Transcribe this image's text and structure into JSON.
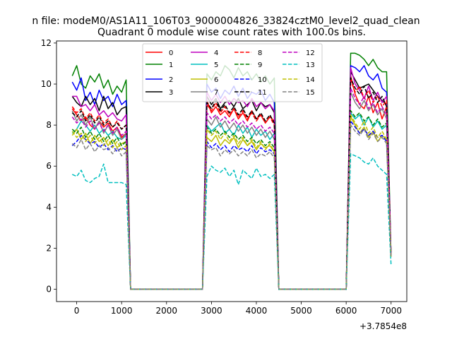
{
  "figure": {
    "suptitle": "n file: modeM0/AS1A11_106T03_9000004826_33824cztM0_level2_quad_clean",
    "offset_label": "+3.7854e8"
  },
  "chart_data": {
    "type": "line",
    "title": "Quadrant 0 module wise count rates with 100.0s bins.",
    "xlabel": "",
    "ylabel": "",
    "xlim": [
      -450,
      7350
    ],
    "ylim": [
      -0.6,
      12.1
    ],
    "x_ticks": [
      0,
      1000,
      2000,
      3000,
      4000,
      5000,
      6000,
      7000
    ],
    "y_ticks": [
      0,
      2,
      4,
      6,
      8,
      10,
      12
    ],
    "x_offset": 378540000,
    "grid": false,
    "legend_placement": "top-center",
    "legend_columns": 4,
    "segments": [
      {
        "x_start": -100,
        "x_end": 1100
      },
      {
        "x_start": 2900,
        "x_end": 4400
      },
      {
        "x_start": 6100,
        "x_end": 6900
      }
    ],
    "zero_range": [
      1200,
      2800,
      4500,
      6000
    ],
    "series": [
      {
        "name": "0",
        "color": "#ff0000",
        "style": "solid",
        "segments": [
          [
            8.8,
            8.5,
            8.2,
            8.4,
            8.0,
            7.8,
            8.2,
            7.9,
            8.1,
            7.7,
            7.9,
            7.4,
            7.6
          ],
          [
            9.2,
            8.6,
            8.9,
            8.5,
            8.7,
            8.4,
            8.8,
            8.3,
            8.6,
            8.2,
            8.7,
            8.3,
            8.5,
            8.1,
            8.4,
            8.2
          ],
          [
            10.4,
            9.5,
            9.0,
            8.8,
            9.4,
            8.6,
            9.1,
            8.3,
            8.9
          ]
        ]
      },
      {
        "name": "1",
        "color": "#008000",
        "style": "solid",
        "segments": [
          [
            10.4,
            10.9,
            10.0,
            9.8,
            10.4,
            10.1,
            10.5,
            9.8,
            10.2,
            9.5,
            9.9,
            9.6,
            10.2
          ],
          [
            10.5,
            10.2,
            10.6,
            10.4,
            10.9,
            10.7,
            10.3,
            10.8,
            10.4,
            10.6,
            10.2,
            10.5,
            10.1,
            10.4,
            10.0,
            10.3
          ],
          [
            11.5,
            11.5,
            11.4,
            11.2,
            10.9,
            11.2,
            10.8,
            10.6,
            10.6
          ]
        ]
      },
      {
        "name": "2",
        "color": "#0000ff",
        "style": "solid",
        "segments": [
          [
            10.1,
            9.7,
            10.3,
            9.2,
            9.6,
            9.0,
            9.7,
            9.2,
            9.4,
            8.9,
            9.5,
            9.0,
            9.2
          ],
          [
            10.0,
            9.6,
            9.8,
            9.3,
            9.7,
            9.5,
            9.9,
            9.4,
            9.8,
            9.3,
            9.6,
            9.5,
            9.7,
            9.2,
            9.5,
            9.1
          ],
          [
            10.9,
            10.8,
            10.6,
            10.9,
            10.4,
            10.2,
            10.5,
            9.8,
            9.6
          ]
        ]
      },
      {
        "name": "3",
        "color": "#000000",
        "style": "solid",
        "segments": [
          [
            9.4,
            9.1,
            8.9,
            9.4,
            9.0,
            9.3,
            8.7,
            9.4,
            8.8,
            9.1,
            8.5,
            8.8,
            8.9
          ],
          [
            9.4,
            9.0,
            9.3,
            8.8,
            9.1,
            9.2,
            8.9,
            9.3,
            8.8,
            9.0,
            9.2,
            8.7,
            9.1,
            8.9,
            9.0,
            8.6
          ],
          [
            10.6,
            10.2,
            9.8,
            9.9,
            10.0,
            9.7,
            9.4,
            9.2,
            9.0
          ]
        ]
      },
      {
        "name": "4",
        "color": "#bf00bf",
        "style": "solid",
        "segments": [
          [
            9.4,
            9.4,
            8.9,
            9.0,
            8.7,
            9.0,
            8.5,
            8.7,
            8.4,
            8.6,
            8.3,
            8.2,
            8.5
          ],
          [
            9.6,
            9.2,
            9.5,
            9.1,
            9.4,
            9.0,
            9.3,
            9.1,
            9.2,
            8.9,
            9.3,
            8.9,
            9.1,
            8.8,
            9.0,
            8.7
          ],
          [
            10.8,
            10.0,
            9.7,
            9.3,
            9.9,
            9.2,
            9.6,
            9.1,
            9.4
          ]
        ]
      },
      {
        "name": "5",
        "color": "#00bfbf",
        "style": "solid",
        "segments": [
          [
            7.6,
            7.8,
            8.2,
            8.0,
            7.7,
            8.0,
            7.6,
            7.8,
            7.5,
            7.7,
            7.4,
            7.3,
            7.5
          ],
          [
            8.0,
            7.7,
            7.9,
            8.1,
            7.6,
            7.8,
            7.5,
            8.0,
            7.6,
            7.9,
            7.4,
            7.8,
            7.5,
            7.7,
            7.3,
            7.6
          ],
          [
            8.6,
            8.3,
            8.5,
            8.0,
            8.4,
            7.9,
            8.2,
            7.8,
            8.0
          ]
        ]
      },
      {
        "name": "6",
        "color": "#bfbf00",
        "style": "solid",
        "segments": [
          [
            7.5,
            7.8,
            7.3,
            7.6,
            7.1,
            7.5,
            7.2,
            7.4,
            7.0,
            7.3,
            6.9,
            7.1,
            7.2
          ],
          [
            7.4,
            7.2,
            7.5,
            7.0,
            7.3,
            7.1,
            7.4,
            6.9,
            7.3,
            7.0,
            7.2,
            6.8,
            7.1,
            6.9,
            7.0,
            6.7
          ],
          [
            8.4,
            8.0,
            7.6,
            7.9,
            7.4,
            7.7,
            7.2,
            7.5,
            7.3
          ]
        ]
      },
      {
        "name": "7",
        "color": "#808080",
        "style": "solid",
        "segments": [
          [
            8.7,
            8.2,
            8.5,
            8.0,
            8.4,
            7.8,
            8.2,
            7.6,
            8.0,
            7.5,
            7.8,
            7.3,
            7.6
          ],
          [
            8.3,
            8.0,
            8.4,
            7.9,
            8.2,
            7.8,
            8.1,
            7.7,
            8.0,
            7.6,
            7.9,
            7.5,
            7.8,
            7.4,
            7.7,
            7.3
          ],
          [
            9.6,
            9.1,
            8.8,
            9.2,
            8.7,
            9.0,
            8.5,
            8.8,
            8.3
          ]
        ]
      },
      {
        "name": "8",
        "color": "#ff0000",
        "style": "dashed",
        "segments": [
          [
            8.9,
            8.6,
            8.8,
            8.3,
            8.6,
            8.2,
            8.5,
            8.1,
            8.3,
            7.9,
            8.2,
            7.8,
            8.0
          ],
          [
            9.0,
            8.7,
            9.1,
            8.6,
            8.9,
            8.5,
            8.8,
            8.4,
            8.7,
            8.3,
            8.6,
            8.2,
            8.5,
            8.1,
            8.4,
            8.0
          ],
          [
            10.2,
            9.6,
            9.9,
            9.3,
            9.7,
            9.1,
            9.4,
            8.9,
            9.2
          ]
        ]
      },
      {
        "name": "9",
        "color": "#008000",
        "style": "dashed",
        "segments": [
          [
            7.8,
            7.6,
            7.9,
            7.4,
            7.7,
            7.3,
            7.6,
            7.2,
            7.5,
            7.1,
            7.4,
            7.0,
            7.2
          ],
          [
            7.9,
            7.6,
            7.8,
            7.5,
            7.7,
            7.4,
            7.6,
            7.3,
            7.5,
            7.2,
            7.4,
            7.1,
            7.3,
            7.0,
            7.2,
            6.9
          ],
          [
            8.7,
            8.4,
            8.6,
            8.2,
            8.4,
            8.0,
            8.3,
            7.9,
            8.1
          ]
        ]
      },
      {
        "name": "10",
        "color": "#0000ff",
        "style": "dashed",
        "segments": [
          [
            7.0,
            7.2,
            7.5,
            7.3,
            7.1,
            7.2,
            6.9,
            7.1,
            6.8,
            7.0,
            6.7,
            6.9,
            6.8
          ],
          [
            7.2,
            6.9,
            7.1,
            6.8,
            7.0,
            6.7,
            7.0,
            6.8,
            6.9,
            6.7,
            7.0,
            6.6,
            6.9,
            6.7,
            6.8,
            6.6
          ],
          [
            8.2,
            7.9,
            7.6,
            7.8,
            7.5,
            7.7,
            7.4,
            7.5,
            7.2
          ]
        ]
      },
      {
        "name": "11",
        "color": "#000000",
        "style": "dashed",
        "segments": [
          [
            8.6,
            8.4,
            8.7,
            8.2,
            8.5,
            8.1,
            8.4,
            8.0,
            8.2,
            7.9,
            8.1,
            7.8,
            8.0
          ],
          [
            9.1,
            8.8,
            9.2,
            8.7,
            9.0,
            8.6,
            8.9,
            8.5,
            8.8,
            8.4,
            8.7,
            8.3,
            8.6,
            8.2,
            8.5,
            8.1
          ],
          [
            10.3,
            9.8,
            9.5,
            9.9,
            9.3,
            9.6,
            9.1,
            9.4,
            8.9
          ]
        ]
      },
      {
        "name": "12",
        "color": "#bf00bf",
        "style": "dashed",
        "segments": [
          [
            8.4,
            8.1,
            8.3,
            7.9,
            8.2,
            7.8,
            8.1,
            7.7,
            8.0,
            7.6,
            7.9,
            7.5,
            7.7
          ],
          [
            8.6,
            8.3,
            8.5,
            8.2,
            8.4,
            8.1,
            8.3,
            8.0,
            8.2,
            7.9,
            8.1,
            7.8,
            8.0,
            7.7,
            7.9,
            7.6
          ],
          [
            9.8,
            9.3,
            9.0,
            9.4,
            8.8,
            9.1,
            8.6,
            8.9,
            8.5
          ]
        ]
      },
      {
        "name": "13",
        "color": "#00bfbf",
        "style": "dashed",
        "segments": [
          [
            5.6,
            5.5,
            5.8,
            5.3,
            5.2,
            5.4,
            5.5,
            6.1,
            5.2,
            5.2,
            5.2,
            5.2,
            5.1
          ],
          [
            5.5,
            6.0,
            5.8,
            5.7,
            5.9,
            5.5,
            5.8,
            5.1,
            5.8,
            5.6,
            5.4,
            5.9,
            5.5,
            5.6,
            5.4,
            5.6
          ],
          [
            6.6,
            6.5,
            6.4,
            6.2,
            6.1,
            6.4,
            6.0,
            5.8,
            5.6
          ]
        ]
      },
      {
        "name": "14",
        "color": "#bfbf00",
        "style": "dashed",
        "segments": [
          [
            7.7,
            7.4,
            7.6,
            7.2,
            7.5,
            7.1,
            7.4,
            7.0,
            7.3,
            6.9,
            7.2,
            6.8,
            7.0
          ],
          [
            7.8,
            7.5,
            7.7,
            7.3,
            7.6,
            7.2,
            7.5,
            7.1,
            7.4,
            7.0,
            7.3,
            6.9,
            7.2,
            6.8,
            7.1,
            6.7
          ],
          [
            8.5,
            8.1,
            7.8,
            8.2,
            7.6,
            7.9,
            7.4,
            7.7,
            7.3
          ]
        ]
      },
      {
        "name": "15",
        "color": "#808080",
        "style": "dashed",
        "segments": [
          [
            7.1,
            6.9,
            7.3,
            6.8,
            7.1,
            6.7,
            7.0,
            6.8,
            6.9,
            6.6,
            6.9,
            6.5,
            6.7
          ],
          [
            7.0,
            6.8,
            6.9,
            6.5,
            6.8,
            6.6,
            6.8,
            6.5,
            6.7,
            6.5,
            6.8,
            6.4,
            6.6,
            6.5,
            6.7,
            6.4
          ],
          [
            8.0,
            7.7,
            7.5,
            7.8,
            7.3,
            7.6,
            7.2,
            7.4,
            7.1
          ]
        ]
      }
    ]
  }
}
